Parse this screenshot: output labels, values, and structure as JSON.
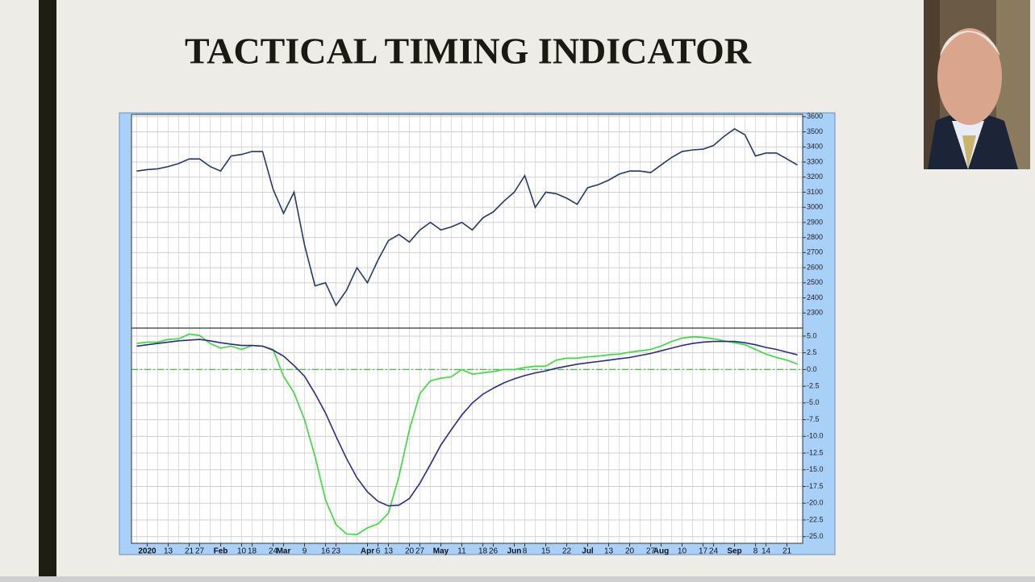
{
  "title": "TACTICAL TIMING INDICATOR",
  "chart_data": [
    {
      "type": "line",
      "color": "#1f3a6e",
      "values": [
        3240,
        3250,
        3255,
        3270,
        3290,
        3320,
        3320,
        3270,
        3240,
        3340,
        3350,
        3370,
        3370,
        3120,
        2960,
        3100,
        2750,
        2480,
        2500,
        2350,
        2450,
        2600,
        2500,
        2650,
        2780,
        2820,
        2770,
        2850,
        2900,
        2850,
        2870,
        2900,
        2850,
        2930,
        2970,
        3040,
        3100,
        3210,
        3000,
        3100,
        3090,
        3060,
        3020,
        3130,
        3150,
        3180,
        3220,
        3240,
        3240,
        3230,
        3280,
        3330,
        3370,
        3380,
        3385,
        3410,
        3470,
        3520,
        3480,
        3340,
        3360,
        3360,
        3320,
        3280
      ],
      "ylim": [
        2200,
        3615
      ],
      "yticks": [
        2300,
        2400,
        2500,
        2600,
        2700,
        2800,
        2900,
        3000,
        3100,
        3200,
        3300,
        3400,
        3500,
        3600
      ],
      "grid": true
    },
    {
      "type": "line",
      "categories": [
        null,
        "2020",
        null,
        "13",
        null,
        "21",
        "27",
        null,
        "Feb",
        null,
        "10",
        "18",
        null,
        "24",
        "Mar",
        null,
        "9",
        null,
        "16",
        "23",
        null,
        null,
        "Apr",
        "6",
        "13",
        null,
        "20",
        "27",
        null,
        "May",
        null,
        "11",
        null,
        "18",
        "26",
        null,
        "Jun",
        "8",
        null,
        "15",
        null,
        "22",
        null,
        "Jul",
        null,
        "13",
        null,
        "20",
        null,
        "27",
        "Aug",
        null,
        "10",
        null,
        "17",
        "24",
        null,
        "Sep",
        null,
        "8",
        "14",
        null,
        "21",
        null
      ],
      "series": [
        {
          "color": "#33dd33",
          "values": [
            3.9,
            4.1,
            4.1,
            4.5,
            4.6,
            5.3,
            5.1,
            3.9,
            3.2,
            3.5,
            3.0,
            3.6,
            3.5,
            3.0,
            -1.0,
            -3.5,
            -7.5,
            -13.0,
            -19.5,
            -23.2,
            -24.6,
            -24.7,
            -23.7,
            -23.1,
            -21.5,
            -16.0,
            -9.0,
            -3.6,
            -1.7,
            -1.3,
            -1.1,
            0,
            -0.7,
            -0.5,
            -0.3,
            0,
            0,
            0.3,
            0.5,
            0.5,
            1.4,
            1.7,
            1.7,
            1.9,
            2.0,
            2.2,
            2.3,
            2.6,
            2.8,
            3.0,
            3.5,
            4.2,
            4.7,
            4.9,
            4.8,
            4.6,
            4.3,
            4.0,
            3.7,
            3.0,
            2.3,
            1.8,
            1.4,
            0.8
          ]
        },
        {
          "color": "#2a2a8a",
          "values": [
            3.5,
            3.7,
            3.9,
            4.1,
            4.3,
            4.4,
            4.5,
            4.3,
            4.0,
            3.8,
            3.6,
            3.6,
            3.5,
            2.9,
            2.0,
            0.6,
            -1.0,
            -3.6,
            -6.5,
            -10.0,
            -13.3,
            -16.2,
            -18.3,
            -19.7,
            -20.4,
            -20.3,
            -19.3,
            -17.0,
            -14.2,
            -11.3,
            -9.0,
            -6.8,
            -5.0,
            -3.7,
            -2.8,
            -2.0,
            -1.4,
            -0.9,
            -0.5,
            -0.2,
            0.2,
            0.5,
            0.8,
            1.0,
            1.2,
            1.4,
            1.6,
            1.8,
            2.1,
            2.4,
            2.8,
            3.2,
            3.6,
            3.9,
            4.1,
            4.2,
            4.2,
            4.2,
            4.0,
            3.7,
            3.3,
            3.0,
            2.6,
            2.2
          ]
        }
      ],
      "ylim": [
        -26,
        6.2
      ],
      "yticks": [
        {
          "value": 5,
          "label": "5.0"
        },
        {
          "value": 2.5,
          "label": "2.5"
        },
        {
          "value": 0,
          "label": "0.0"
        },
        {
          "value": -2.5,
          "label": "-2.5"
        },
        {
          "value": -5,
          "label": "-5.0"
        },
        {
          "value": -7.5,
          "label": "-7.5"
        },
        {
          "value": -10,
          "label": "-10.0"
        },
        {
          "value": -12.5,
          "label": "-12.5"
        },
        {
          "value": -15,
          "label": "-15.0"
        },
        {
          "value": -17.5,
          "label": "-17.5"
        },
        {
          "value": -20,
          "label": "-20.0"
        },
        {
          "value": -22.5,
          "label": "-22.5"
        },
        {
          "value": -25,
          "label": "-25.0"
        }
      ],
      "grid": true,
      "zero_line": true,
      "zero_line_color": "#33cc33"
    }
  ]
}
